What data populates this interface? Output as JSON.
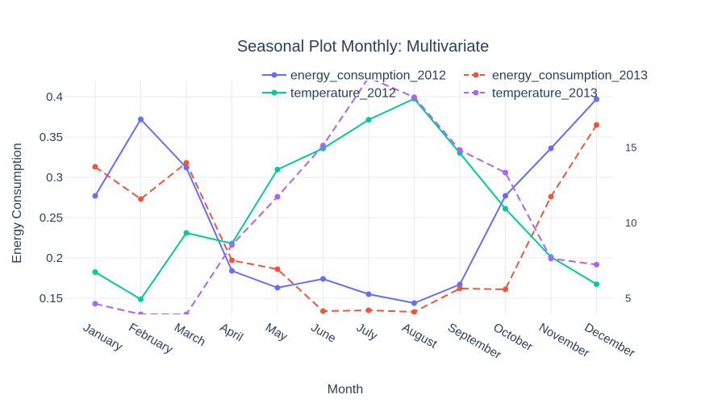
{
  "chart_data": {
    "type": "line",
    "title": "Seasonal Plot Monthly: Multivariate",
    "xlabel": "Month",
    "ylabel": "Energy Consumption",
    "categories": [
      "January",
      "February",
      "March",
      "April",
      "May",
      "June",
      "July",
      "August",
      "September",
      "October",
      "November",
      "December"
    ],
    "y_ticks": [
      "0.15",
      "0.2",
      "0.25",
      "0.3",
      "0.35",
      "0.4"
    ],
    "y2_ticks": [
      "5",
      "10",
      "15"
    ],
    "ylim": [
      0.13,
      0.42
    ],
    "y2lim": [
      3.9,
      19.4
    ],
    "grid": true,
    "legend_position": "top-right",
    "series": [
      {
        "name": "energy_consumption_2012",
        "axis": "y",
        "color": "#636efa",
        "dash": "solid",
        "values": [
          0.277,
          0.372,
          0.312,
          0.184,
          0.163,
          0.174,
          0.155,
          0.144,
          0.167,
          0.277,
          0.336,
          0.397
        ]
      },
      {
        "name": "energy_consumption_2013",
        "axis": "y",
        "color": "#ef553b",
        "dash": "dash",
        "values": [
          0.313,
          0.273,
          0.318,
          0.197,
          0.186,
          0.134,
          0.135,
          0.133,
          0.162,
          0.161,
          0.276,
          0.365
        ]
      },
      {
        "name": "temperature_2012",
        "axis": "y2",
        "color": "#00cc96",
        "dash": "solid",
        "values": [
          6.7,
          4.9,
          9.3,
          8.6,
          13.5,
          14.9,
          16.8,
          18.2,
          14.6,
          10.9,
          7.7,
          5.9
        ]
      },
      {
        "name": "temperature_2013",
        "axis": "y2",
        "color": "#ab63fa",
        "dash": "dash",
        "values": [
          4.6,
          3.9,
          3.9,
          8.5,
          11.7,
          15.1,
          19.6,
          18.3,
          14.8,
          13.3,
          7.6,
          7.2
        ]
      }
    ]
  }
}
